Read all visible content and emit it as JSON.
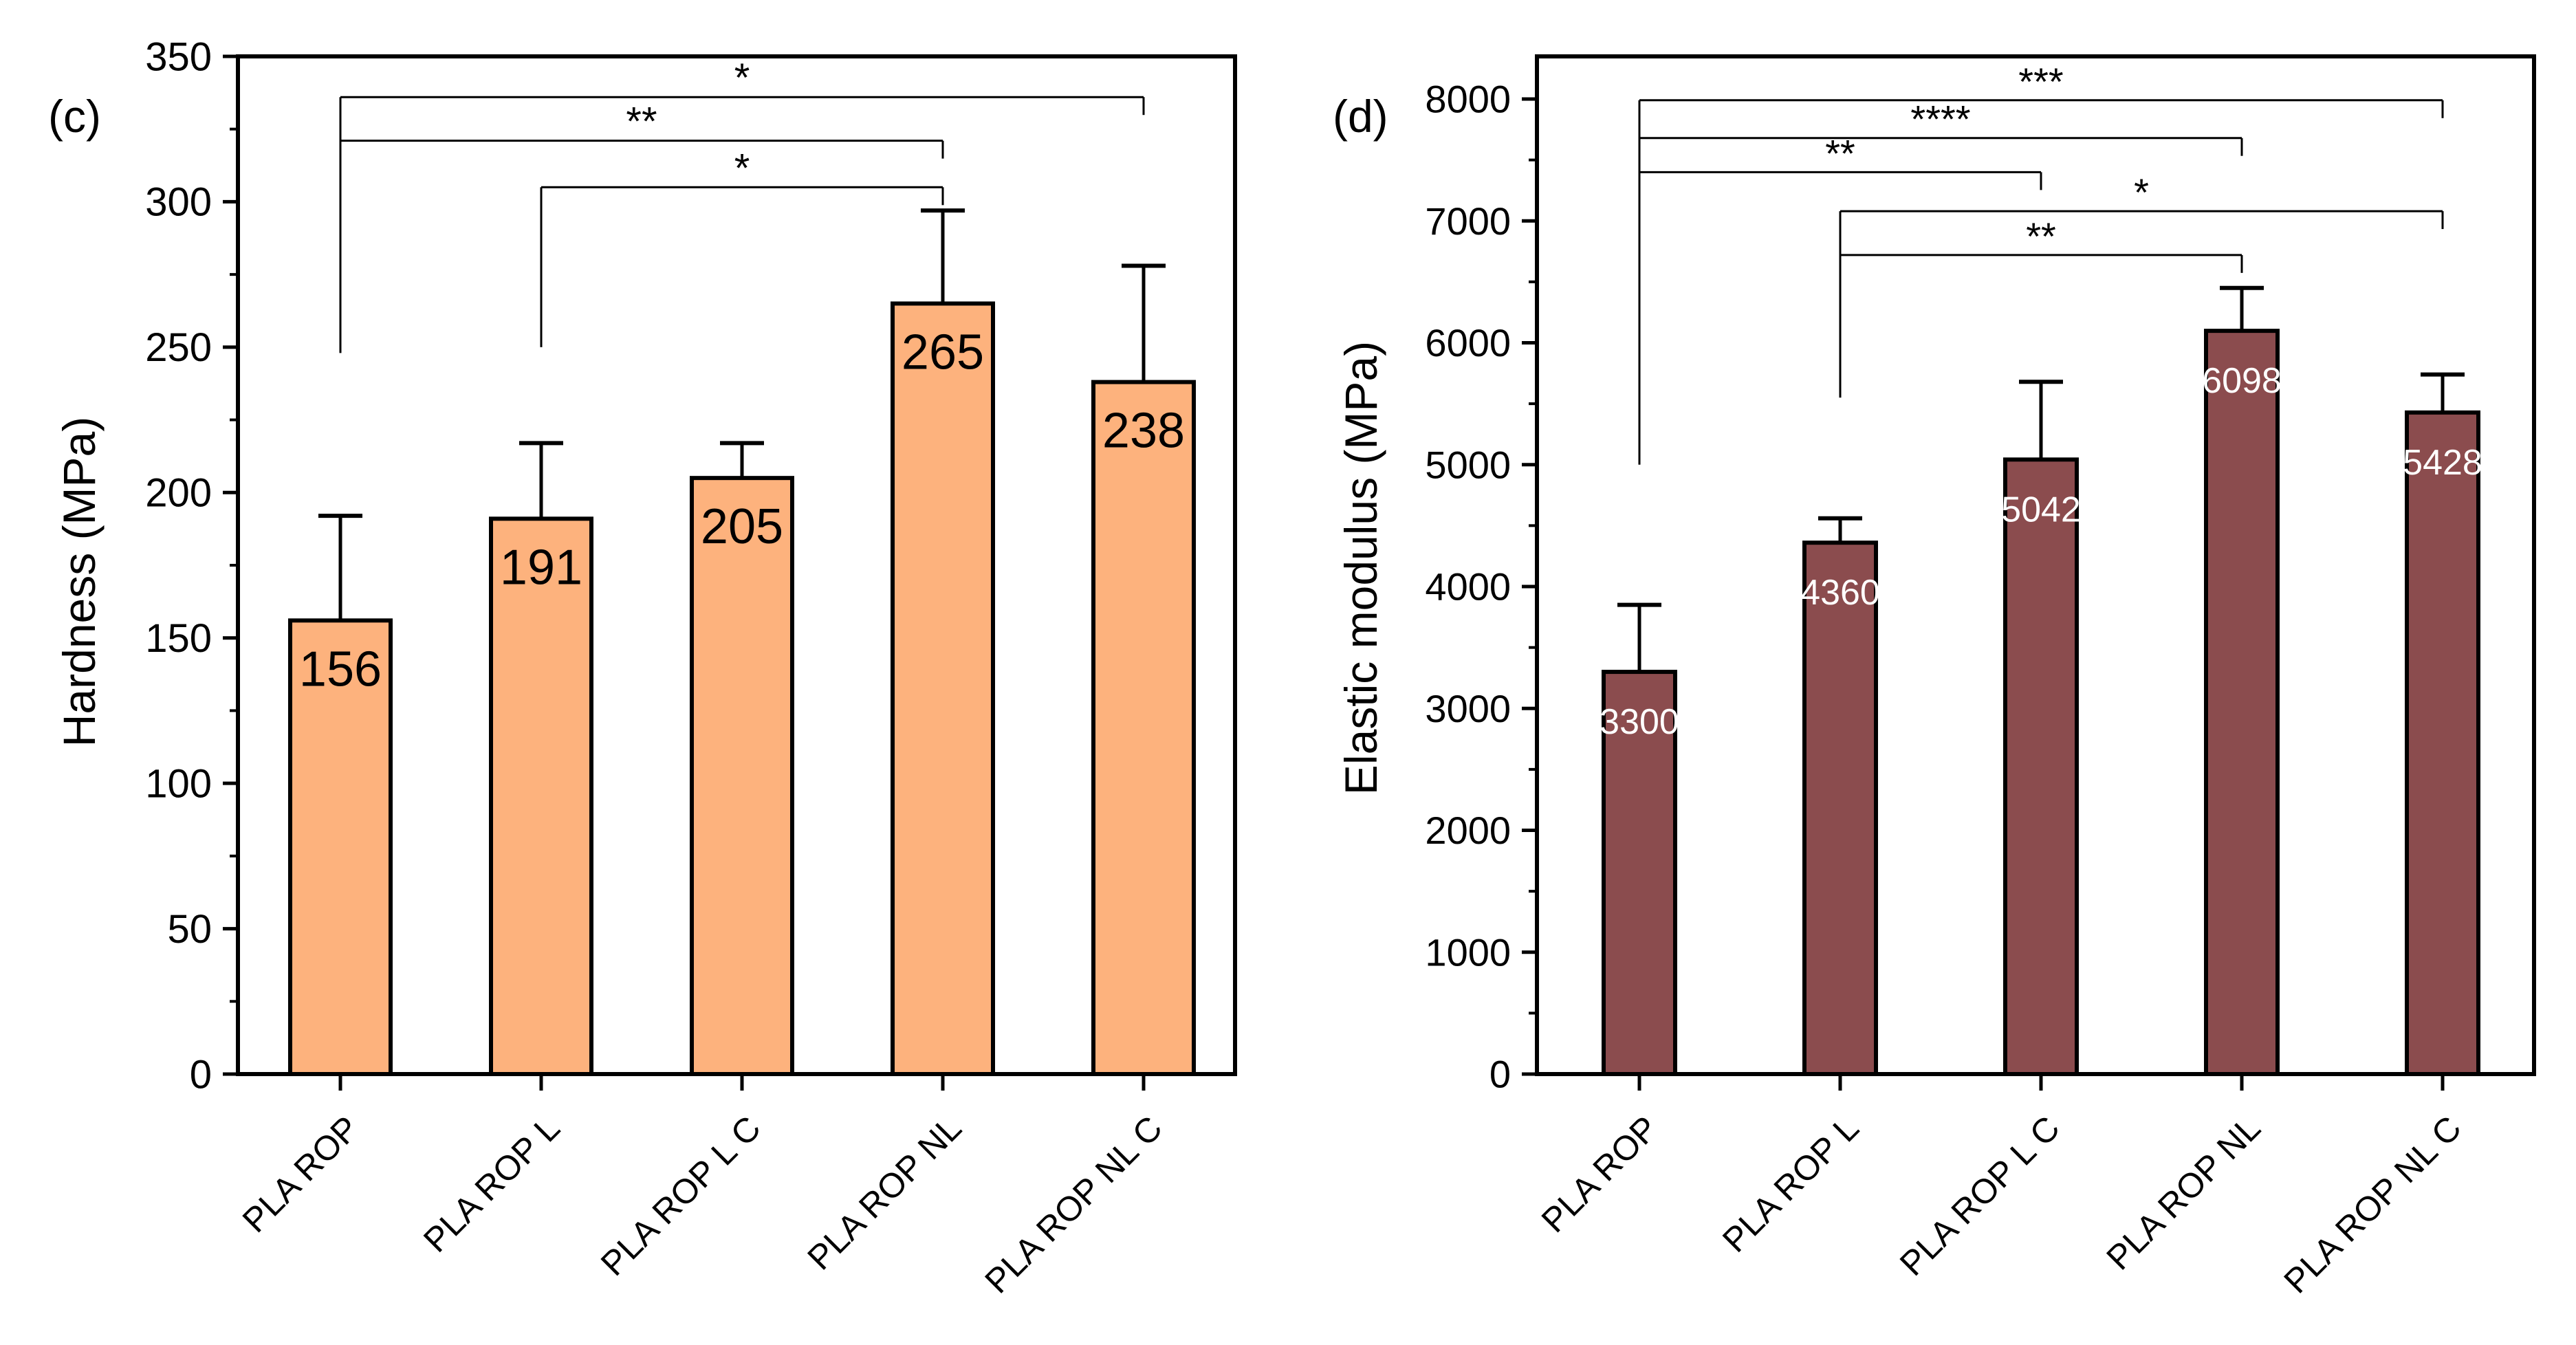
{
  "chart_data": [
    {
      "type": "bar",
      "panel_label": "(c)",
      "ylabel": "Hardness (MPa)",
      "xlabel": "",
      "ylim": [
        0,
        350
      ],
      "yticks": [
        0,
        50,
        100,
        150,
        200,
        250,
        300,
        350
      ],
      "categories": [
        "PLA ROP",
        "PLA ROP L",
        "PLA ROP L C",
        "PLA ROP NL",
        "PLA ROP NL C"
      ],
      "values": [
        156,
        191,
        205,
        265,
        238
      ],
      "error_upper": [
        192,
        217,
        217,
        297,
        278
      ],
      "data_labels": [
        "156",
        "191",
        "205",
        "265",
        "238"
      ],
      "bar_color": "#FDB27D",
      "label_color": "#000000",
      "significance": [
        {
          "from": 0,
          "to": 4,
          "label": "*",
          "level": 336,
          "drop_from": 248
        },
        {
          "from": 0,
          "to": 3,
          "label": "**",
          "level": 321,
          "drop_from": null
        },
        {
          "from": 1,
          "to": 3,
          "label": "*",
          "level": 305,
          "drop_from": 250
        }
      ]
    },
    {
      "type": "bar",
      "panel_label": "(d)",
      "ylabel": "Elastic modulus (MPa)",
      "xlabel": "",
      "ylim": [
        0,
        8000
      ],
      "yticks": [
        0,
        1000,
        2000,
        3000,
        4000,
        5000,
        6000,
        7000,
        8000
      ],
      "categories": [
        "PLA ROP",
        "PLA ROP L",
        "PLA ROP L C",
        "PLA ROP NL",
        "PLA ROP NL C"
      ],
      "values": [
        3300,
        4360,
        5042,
        6098,
        5428
      ],
      "error_upper": [
        3850,
        4560,
        5680,
        6450,
        5740
      ],
      "data_labels": [
        "3300",
        "4360",
        "5042",
        "6098",
        "5428"
      ],
      "bar_color": "#8B4C4E",
      "label_color": "#ffffff",
      "significance": [
        {
          "from": 0,
          "to": 4,
          "label": "***",
          "level": 7990,
          "drop_from": 5000
        },
        {
          "from": 0,
          "to": 3,
          "label": "****",
          "level": 7680,
          "drop_from": null
        },
        {
          "from": 0,
          "to": 2,
          "label": "**",
          "level": 7400,
          "drop_from": null
        },
        {
          "from": 1,
          "to": 4,
          "label": "*",
          "level": 7080,
          "drop_from": 5550
        },
        {
          "from": 1,
          "to": 3,
          "label": "**",
          "level": 6720,
          "drop_from": null
        }
      ]
    }
  ]
}
